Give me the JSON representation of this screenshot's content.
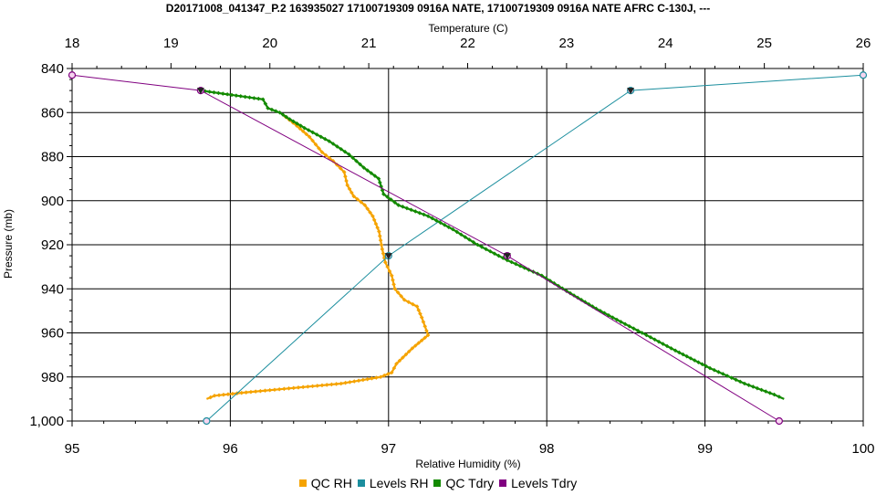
{
  "chart_data": {
    "type": "line",
    "title": "D20171008_041347_P.2 163935027 17100719309 0916A NATE, 17100719309 0916A NATE AFRC C-130J, ---",
    "xlabel_top": "Temperature (C)",
    "xlabel_bottom": "Relative Humidity (%)",
    "ylabel": "Pressure (mb)",
    "top_axis": {
      "min": 18,
      "max": 26,
      "ticks": [
        18,
        19,
        20,
        21,
        22,
        23,
        24,
        25,
        26
      ]
    },
    "bottom_axis": {
      "min": 95,
      "max": 100,
      "ticks": [
        95,
        96,
        97,
        98,
        99,
        100
      ]
    },
    "y_axis": {
      "min": 840,
      "max": 1000,
      "inverted": true,
      "ticks": [
        840,
        860,
        880,
        900,
        920,
        940,
        960,
        980,
        1000
      ],
      "tick_labels": [
        "840",
        "860",
        "880",
        "900",
        "920",
        "940",
        "960",
        "980",
        "1,000"
      ]
    },
    "grid": true,
    "legend_position": "bottom",
    "series": [
      {
        "name": "QC RH",
        "axis": "bottom",
        "color": "#f5a300",
        "marker": "diamond",
        "points": [
          [
            96.35,
            862
          ],
          [
            96.42,
            866
          ],
          [
            96.5,
            871
          ],
          [
            96.58,
            878
          ],
          [
            96.65,
            882
          ],
          [
            96.72,
            887
          ],
          [
            96.74,
            893
          ],
          [
            96.78,
            898
          ],
          [
            96.85,
            902
          ],
          [
            96.9,
            907
          ],
          [
            96.94,
            914
          ],
          [
            96.96,
            922
          ],
          [
            96.98,
            928
          ],
          [
            97.02,
            934
          ],
          [
            97.04,
            940
          ],
          [
            97.1,
            945
          ],
          [
            97.18,
            948
          ],
          [
            97.21,
            953
          ],
          [
            97.25,
            961
          ],
          [
            97.15,
            967
          ],
          [
            97.05,
            974
          ],
          [
            97.02,
            978
          ],
          [
            96.95,
            980
          ],
          [
            96.7,
            983
          ],
          [
            96.4,
            985
          ],
          [
            96.1,
            987
          ],
          [
            95.9,
            988.5
          ],
          [
            95.85,
            990
          ]
        ]
      },
      {
        "name": "Levels RH",
        "axis": "bottom",
        "color": "#1b8e9e",
        "marker": "circle",
        "points": [
          [
            100,
            843
          ],
          [
            98.53,
            850
          ],
          [
            97.0,
            925
          ],
          [
            95.85,
            1000
          ]
        ]
      },
      {
        "name": "QC Tdry",
        "axis": "top",
        "color": "#138a00",
        "marker": "diamond",
        "points": [
          [
            19.3,
            850
          ],
          [
            19.93,
            854
          ],
          [
            19.98,
            858
          ],
          [
            20.1,
            860
          ],
          [
            20.2,
            863
          ],
          [
            20.35,
            867
          ],
          [
            20.6,
            873
          ],
          [
            20.8,
            879
          ],
          [
            20.95,
            885
          ],
          [
            21.1,
            890
          ],
          [
            21.15,
            897
          ],
          [
            21.3,
            902
          ],
          [
            21.6,
            907
          ],
          [
            21.85,
            913
          ],
          [
            22.1,
            920
          ],
          [
            22.4,
            927
          ],
          [
            22.75,
            934
          ],
          [
            23.0,
            941
          ],
          [
            23.3,
            949
          ],
          [
            23.55,
            955
          ],
          [
            23.85,
            962
          ],
          [
            24.1,
            968
          ],
          [
            24.45,
            976
          ],
          [
            24.8,
            983
          ],
          [
            25.1,
            988
          ],
          [
            25.2,
            990
          ]
        ]
      },
      {
        "name": "Levels Tdry",
        "axis": "top",
        "color": "#800080",
        "marker": "circle",
        "points": [
          [
            18,
            843
          ],
          [
            19.3,
            850
          ],
          [
            22.4,
            925
          ],
          [
            25.15,
            1000
          ]
        ]
      }
    ]
  }
}
